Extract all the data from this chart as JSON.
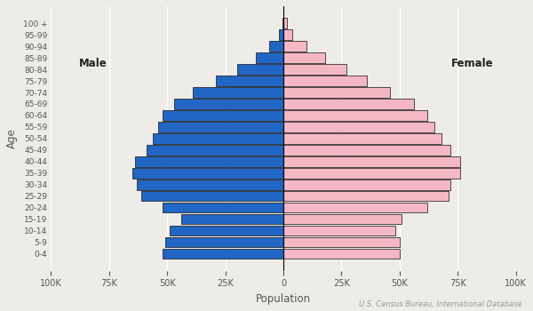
{
  "age_groups": [
    "0-4",
    "5-9",
    "10-14",
    "15-19",
    "20-24",
    "25-29",
    "30-34",
    "35-39",
    "40-44",
    "45-49",
    "50-54",
    "55-59",
    "60-64",
    "65-69",
    "70-74",
    "75-79",
    "80-84",
    "85-89",
    "90-94",
    "95-99",
    "100 +"
  ],
  "male": [
    52000,
    51000,
    49000,
    44000,
    52000,
    61000,
    63000,
    65000,
    64000,
    59000,
    56000,
    54000,
    52000,
    47000,
    39000,
    29000,
    20000,
    12000,
    6000,
    2000,
    500
  ],
  "female": [
    50000,
    50000,
    48000,
    51000,
    62000,
    71000,
    72000,
    76000,
    76000,
    72000,
    68000,
    65000,
    62000,
    56000,
    46000,
    36000,
    27000,
    18000,
    10000,
    4000,
    1500
  ],
  "male_color": "#2166c4",
  "female_color": "#f4b8c4",
  "male_edgecolor": "#111111",
  "female_edgecolor": "#111111",
  "xlabel": "Population",
  "ylabel": "Age",
  "xlim": 100000,
  "male_label": "Male",
  "female_label": "Female",
  "source": "U.S. Census Bureau, International Database",
  "bg_color": "#eeece8",
  "bar_height": 0.9
}
